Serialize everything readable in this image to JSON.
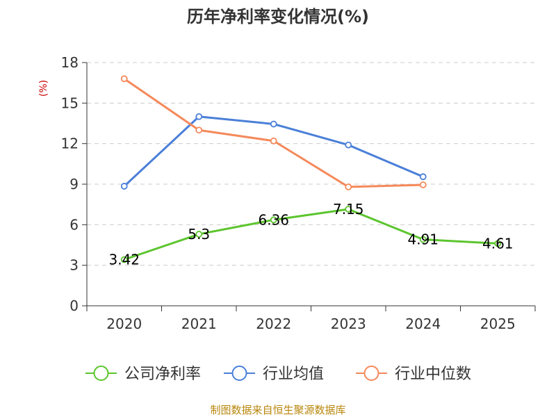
{
  "chart_data": {
    "type": "line",
    "title": "历年净利率变化情况(%)",
    "ylabel": "(%)",
    "xlabel": "",
    "categories": [
      "2020",
      "2021",
      "2022",
      "2023",
      "2024",
      "2025"
    ],
    "ylim": [
      0,
      18
    ],
    "yticks": [
      0,
      3,
      6,
      9,
      12,
      15,
      18
    ],
    "grid": true,
    "legend_position": "bottom",
    "series": [
      {
        "name": "公司净利率",
        "color": "#5cc52e",
        "values": [
          3.42,
          5.3,
          6.36,
          7.15,
          4.91,
          4.61
        ],
        "labels": [
          "3.42",
          "5.3",
          "6.36",
          "7.15",
          "4.91",
          "4.61"
        ]
      },
      {
        "name": "行业均值",
        "color": "#4a7fd8",
        "values": [
          8.85,
          14.0,
          13.45,
          11.9,
          9.55,
          null
        ]
      },
      {
        "name": "行业中位数",
        "color": "#f5895a",
        "values": [
          16.8,
          13.0,
          12.2,
          8.8,
          8.95,
          null
        ]
      }
    ],
    "source": "制图数据来自恒生聚源数据库"
  }
}
